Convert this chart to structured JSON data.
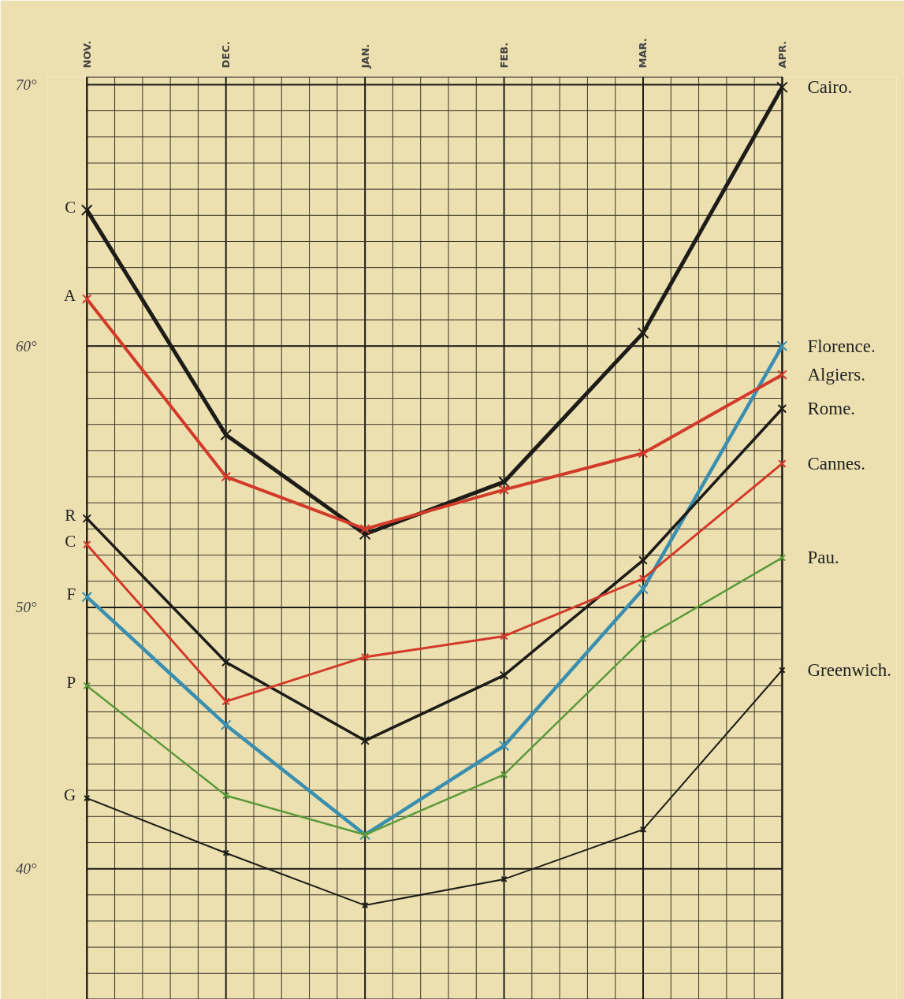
{
  "chart_data": {
    "type": "line",
    "categories": [
      "NOV.",
      "DEC.",
      "JAN.",
      "FEB.",
      "MAR.",
      "APR."
    ],
    "series": [
      {
        "name": "Cairo.",
        "color": "#1e1c18",
        "values": [
          65.2,
          56.6,
          52.8,
          54.8,
          60.5,
          69.9
        ]
      },
      {
        "name": "Florence.",
        "color": "#3a8fb0",
        "values": [
          50.4,
          45.5,
          41.3,
          44.7,
          50.7,
          60.0
        ]
      },
      {
        "name": "Algiers.",
        "color": "#d23a2a",
        "values": [
          61.8,
          55.0,
          53.0,
          54.5,
          55.9,
          58.9
        ]
      },
      {
        "name": "Rome.",
        "color": "#1e1c18",
        "values": [
          53.4,
          47.9,
          44.9,
          47.4,
          51.8,
          57.6
        ]
      },
      {
        "name": "Cannes.",
        "color": "#d23a2a",
        "values": [
          52.4,
          46.4,
          48.1,
          48.9,
          51.1,
          55.5
        ]
      },
      {
        "name": "Pau.",
        "color": "#5a9a3a",
        "values": [
          47.0,
          42.8,
          41.3,
          43.6,
          48.8,
          51.9
        ]
      },
      {
        "name": "Greenwich.",
        "color": "#1e1c18",
        "values": [
          42.7,
          40.6,
          38.6,
          39.6,
          41.5,
          47.6
        ]
      }
    ],
    "ylim": [
      35,
      70.3
    ],
    "yticks": [
      {
        "value": 40,
        "label": "40°"
      },
      {
        "value": 50,
        "label": "50°"
      },
      {
        "value": 60,
        "label": "60°"
      },
      {
        "value": 70,
        "label": "70°"
      }
    ],
    "annotations": [
      {
        "text": "C",
        "x": "NOV.",
        "y": 65.2
      },
      {
        "text": "A",
        "x": "NOV.",
        "y": 61.8
      },
      {
        "text": "R",
        "x": "NOV.",
        "y": 53.4
      },
      {
        "text": "C",
        "x": "NOV.",
        "y": 52.4
      },
      {
        "text": "F",
        "x": "NOV.",
        "y": 50.4
      },
      {
        "text": "P",
        "x": "NOV.",
        "y": 47.0
      },
      {
        "text": "G",
        "x": "NOV.",
        "y": 42.7
      }
    ],
    "grid": true,
    "marker": "cross",
    "line_style": "solid"
  }
}
